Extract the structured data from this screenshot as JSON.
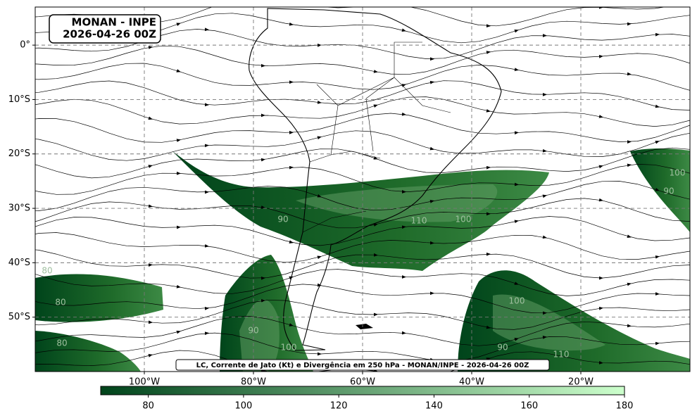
{
  "map": {
    "title": "MONAN - INPE",
    "subtitle": "2026-04-26 00Z",
    "caption": "LC, Corrente de Jato (Kt) e Divergência em 250 hPa - MONAN/INPE - 2026-04-26 00Z",
    "xlim": [
      -120,
      0
    ],
    "ylim": [
      -60,
      7
    ],
    "xticks": [
      {
        "value": -100,
        "label": "100°W"
      },
      {
        "value": -80,
        "label": "80°W"
      },
      {
        "value": -60,
        "label": "60°W"
      },
      {
        "value": -40,
        "label": "40°W"
      },
      {
        "value": -20,
        "label": "20°W"
      }
    ],
    "yticks": [
      {
        "value": 0,
        "label": "0°"
      },
      {
        "value": -10,
        "label": "10°S"
      },
      {
        "value": -20,
        "label": "20°S"
      },
      {
        "value": -30,
        "label": "30°S"
      },
      {
        "value": -40,
        "label": "40°S"
      },
      {
        "value": -50,
        "label": "50°S"
      }
    ],
    "grid": true,
    "colorbar": {
      "range": [
        70,
        180
      ],
      "ticks": [
        80,
        100,
        120,
        140,
        160,
        180
      ],
      "colors": [
        "#00441b",
        "#ccffcc"
      ]
    },
    "contour_labels": [
      90,
      110,
      100,
      90,
      100,
      80,
      80,
      90,
      100,
      90,
      110,
      100,
      80
    ]
  }
}
